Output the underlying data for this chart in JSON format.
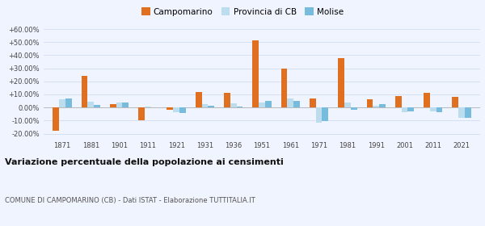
{
  "years": [
    1871,
    1881,
    1901,
    1911,
    1921,
    1931,
    1936,
    1951,
    1961,
    1971,
    1981,
    1991,
    2001,
    2011,
    2021
  ],
  "campomarino": [
    -18.0,
    24.0,
    2.5,
    -9.5,
    -2.0,
    12.0,
    11.0,
    51.5,
    30.0,
    7.0,
    37.5,
    6.0,
    8.5,
    11.5,
    8.0
  ],
  "provincia_cb": [
    6.0,
    4.5,
    3.5,
    0.5,
    -3.5,
    2.5,
    3.0,
    3.5,
    7.0,
    -11.5,
    3.5,
    1.5,
    -3.5,
    -3.0,
    -8.0
  ],
  "molise": [
    7.0,
    2.0,
    4.0,
    0.0,
    -4.0,
    1.5,
    0.5,
    5.0,
    5.0,
    -10.5,
    -2.0,
    2.5,
    -3.0,
    -3.5,
    -8.0
  ],
  "color_campo": "#E07020",
  "color_prov": "#BBDDEE",
  "color_mol": "#77BBDD",
  "ylim": [
    -25,
    65
  ],
  "yticks": [
    -20,
    -10,
    0,
    10,
    20,
    30,
    40,
    50,
    60
  ],
  "title": "Variazione percentuale della popolazione ai censimenti",
  "subtitle": "COMUNE DI CAMPOMARINO (CB) - Dati ISTAT - Elaborazione TUTTITALIA.IT",
  "legend_labels": [
    "Campomarino",
    "Provincia di CB",
    "Molise"
  ],
  "background_color": "#f0f4ff",
  "grid_color": "#d0ddf0"
}
